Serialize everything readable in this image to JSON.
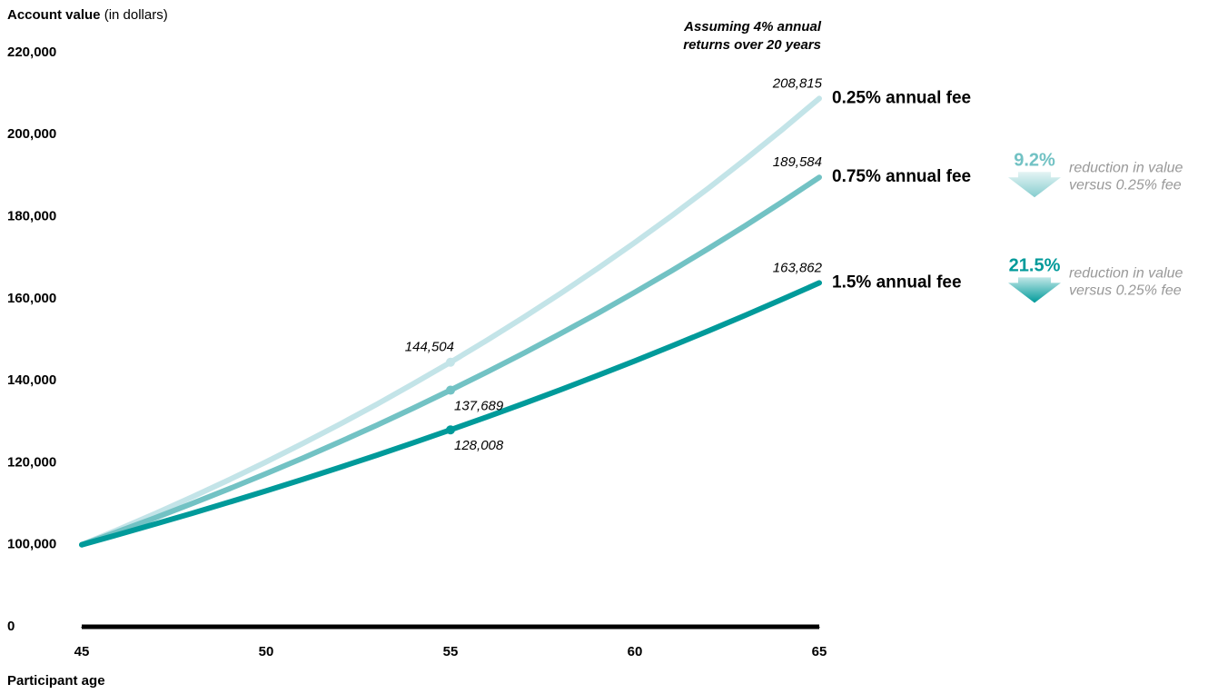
{
  "chart_data": {
    "type": "line",
    "title": "Account value",
    "title_suffix": "(in dollars)",
    "x_label": "Participant age",
    "note": [
      "Assuming 4% annual",
      "returns over 20 years"
    ],
    "x": [
      45,
      46,
      47,
      48,
      49,
      50,
      51,
      52,
      53,
      54,
      55,
      56,
      57,
      58,
      59,
      60,
      61,
      62,
      63,
      64,
      65
    ],
    "xlim": [
      45,
      65
    ],
    "xticks": [
      45,
      50,
      55,
      60,
      65
    ],
    "ylim": [
      0,
      220000
    ],
    "yticks": [
      0,
      {
        "value": 100000,
        "label": "100,000"
      },
      {
        "value": 120000,
        "label": "120,000"
      },
      {
        "value": 140000,
        "label": "140,000"
      },
      {
        "value": 160000,
        "label": "160,000"
      },
      {
        "value": 180000,
        "label": "180,000"
      },
      {
        "value": 200000,
        "label": "200,000"
      },
      {
        "value": 220000,
        "label": "220,000"
      }
    ],
    "marker_x": [
      55
    ],
    "series": [
      {
        "name": "0.25% annual fee",
        "color": "#c3e4e8",
        "values": [
          100000,
          103750,
          107641,
          111677,
          115865,
          120210,
          124718,
          129395,
          134247,
          139282,
          144504,
          149923,
          155545,
          161378,
          167430,
          173708,
          180222,
          186981,
          193993,
          201267,
          208815
        ],
        "value_labels": [
          null,
          null,
          null,
          null,
          null,
          null,
          null,
          null,
          null,
          null,
          "144,504",
          null,
          null,
          null,
          null,
          null,
          null,
          null,
          null,
          null,
          "208,815"
        ]
      },
      {
        "name": "0.75% annual fee",
        "color": "#72c2c4",
        "values": [
          100000,
          103250,
          106606,
          110071,
          113648,
          117341,
          121155,
          125092,
          129158,
          133356,
          137689,
          142164,
          146784,
          151555,
          156480,
          161566,
          166817,
          172238,
          177836,
          183616,
          189584
        ],
        "value_labels": [
          null,
          null,
          null,
          null,
          null,
          null,
          null,
          null,
          null,
          null,
          "137,689",
          null,
          null,
          null,
          null,
          null,
          null,
          null,
          null,
          null,
          "189,584"
        ],
        "reduction": {
          "value": 9.2,
          "label": "9.2%"
        }
      },
      {
        "name": "1.5% annual fee",
        "color": "#009a9a",
        "values": [
          100000,
          102500,
          105063,
          107689,
          110381,
          113141,
          115969,
          118869,
          121840,
          124886,
          128008,
          131209,
          134489,
          137851,
          141297,
          144830,
          148451,
          152162,
          155966,
          159865,
          163862
        ],
        "value_labels": [
          null,
          null,
          null,
          null,
          null,
          null,
          null,
          null,
          null,
          null,
          "128,008",
          null,
          null,
          null,
          null,
          null,
          null,
          null,
          null,
          null,
          "163,862"
        ],
        "reduction": {
          "value": 21.5,
          "label": "21.5%"
        }
      }
    ],
    "reduction_text": [
      "reduction in value",
      "versus 0.25% fee"
    ]
  }
}
